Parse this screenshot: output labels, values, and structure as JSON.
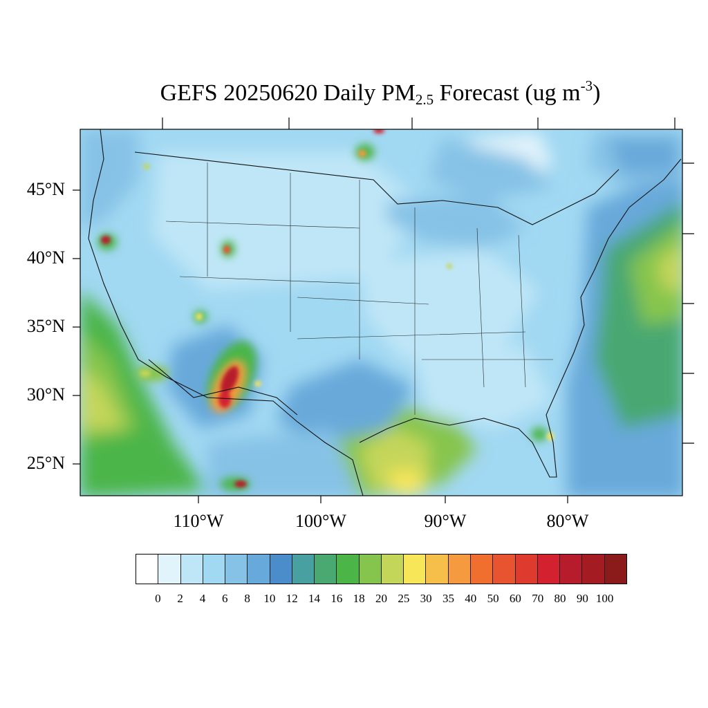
{
  "title": {
    "prefix": "GEFS 20250620 Daily PM",
    "subscript": "2.5",
    "middle": " Forecast (ug m",
    "superscript": "-3",
    "suffix": ")"
  },
  "map": {
    "lat_labels": [
      "45°N",
      "40°N",
      "35°N",
      "30°N",
      "25°N"
    ],
    "lon_labels": [
      "110°W",
      "100°W",
      "90°W",
      "80°W"
    ]
  },
  "colorbar": {
    "labels": [
      "0",
      "2",
      "4",
      "6",
      "8",
      "10",
      "12",
      "14",
      "16",
      "18",
      "20",
      "25",
      "30",
      "35",
      "40",
      "50",
      "60",
      "70",
      "80",
      "90",
      "100"
    ],
    "colors": [
      "#ffffff",
      "#e1f3fb",
      "#bfe6f7",
      "#a1d8f2",
      "#86c2e6",
      "#67a9da",
      "#4a8dca",
      "#48a0a0",
      "#4aa871",
      "#4cb548",
      "#86c54d",
      "#c4d65a",
      "#f8e659",
      "#f6bf4a",
      "#f59a3e",
      "#f06f2f",
      "#e85330",
      "#de3a2d",
      "#d42130",
      "#b71c2c",
      "#a41c22",
      "#8b1a1a"
    ]
  }
}
